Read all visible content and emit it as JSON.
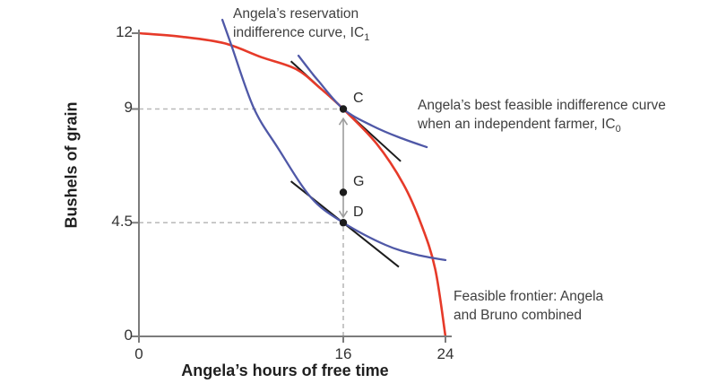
{
  "colors": {
    "frontier": "#e63a29",
    "indifference": "#4f58a7",
    "tangent": "#1c1c1c",
    "axis": "#7c7c7c",
    "guide": "#b9b9b9",
    "arrow": "#9d9d9d",
    "dot": "#1c1c1c"
  },
  "chart_data": {
    "type": "line",
    "title": "",
    "xlabel": "Angela’s hours of free time",
    "ylabel": "Bushels of grain",
    "xlim": [
      0,
      24
    ],
    "ylim": [
      0,
      12
    ],
    "grid": false,
    "legend_position": "none",
    "x_ticks": [
      {
        "v": 0,
        "label": "0"
      },
      {
        "v": 16,
        "label": "16"
      },
      {
        "v": 24,
        "label": "24"
      }
    ],
    "y_ticks": [
      {
        "v": 0,
        "label": "0"
      },
      {
        "v": 4.5,
        "label": "4.5"
      },
      {
        "v": 9,
        "label": "9"
      },
      {
        "v": 12,
        "label": "12"
      }
    ],
    "series": [
      {
        "name": "feasible_frontier",
        "kind": "curve",
        "color_key": "frontier",
        "points": [
          [
            0,
            12
          ],
          [
            3.3,
            11.86
          ],
          [
            6.7,
            11.6
          ],
          [
            9.6,
            11.05
          ],
          [
            12.3,
            10.58
          ],
          [
            14.2,
            9.82
          ],
          [
            16,
            9
          ],
          [
            18.6,
            7.63
          ],
          [
            20.7,
            6.03
          ],
          [
            22.1,
            4.44
          ],
          [
            23.2,
            2.66
          ],
          [
            24,
            0
          ]
        ]
      },
      {
        "name": "ic0_best_feasible_independent",
        "kind": "curve",
        "color_key": "indifference",
        "points": [
          [
            12.49,
            11.11
          ],
          [
            13.5,
            10.45
          ],
          [
            14.04,
            10.12
          ],
          [
            16,
            9
          ],
          [
            18.25,
            8.34
          ],
          [
            20.35,
            7.88
          ],
          [
            22.53,
            7.49
          ]
        ]
      },
      {
        "name": "ic1_reservation",
        "kind": "curve",
        "color_key": "indifference",
        "points": [
          [
            6.53,
            12.53
          ],
          [
            7.23,
            11.54
          ],
          [
            8.98,
            9.05
          ],
          [
            10.88,
            7.46
          ],
          [
            13.47,
            5.5
          ],
          [
            16,
            4.5
          ],
          [
            19.3,
            3.62
          ],
          [
            21.75,
            3.23
          ],
          [
            24,
            3.02
          ]
        ]
      },
      {
        "name": "tangent_at_c",
        "kind": "line",
        "color_key": "tangent",
        "points": [
          [
            11.9,
            10.89
          ],
          [
            20.5,
            6.93
          ]
        ]
      },
      {
        "name": "tangent_at_d",
        "kind": "line",
        "color_key": "tangent",
        "points": [
          [
            11.9,
            6.14
          ],
          [
            20.35,
            2.75
          ]
        ]
      }
    ],
    "points": [
      {
        "label": "C",
        "x": 16,
        "y": 9
      },
      {
        "label": "G",
        "x": 16,
        "y": 5.7
      },
      {
        "label": "D",
        "x": 16,
        "y": 4.5
      }
    ],
    "guides": [
      {
        "type": "h",
        "y": 9,
        "x1": 0,
        "x2": 16
      },
      {
        "type": "h",
        "y": 4.5,
        "x1": 0,
        "x2": 16
      },
      {
        "type": "v",
        "x": 16,
        "y1": 0,
        "y2": 4.5
      }
    ],
    "arrow": {
      "x": 16,
      "y1": 8.62,
      "y2": 4.72
    },
    "annotations": {
      "ic1_label": {
        "line1": "Angela’s reservation",
        "line2": "indifference curve, IC",
        "line2_sub": "1"
      },
      "ic0_label": {
        "line1": "Angela’s best feasible indifference curve",
        "line2": "when an independent farmer, IC",
        "line2_sub": "0"
      },
      "frontier_label": {
        "line1": "Feasible frontier: Angela",
        "line2": "and Bruno combined"
      }
    }
  }
}
